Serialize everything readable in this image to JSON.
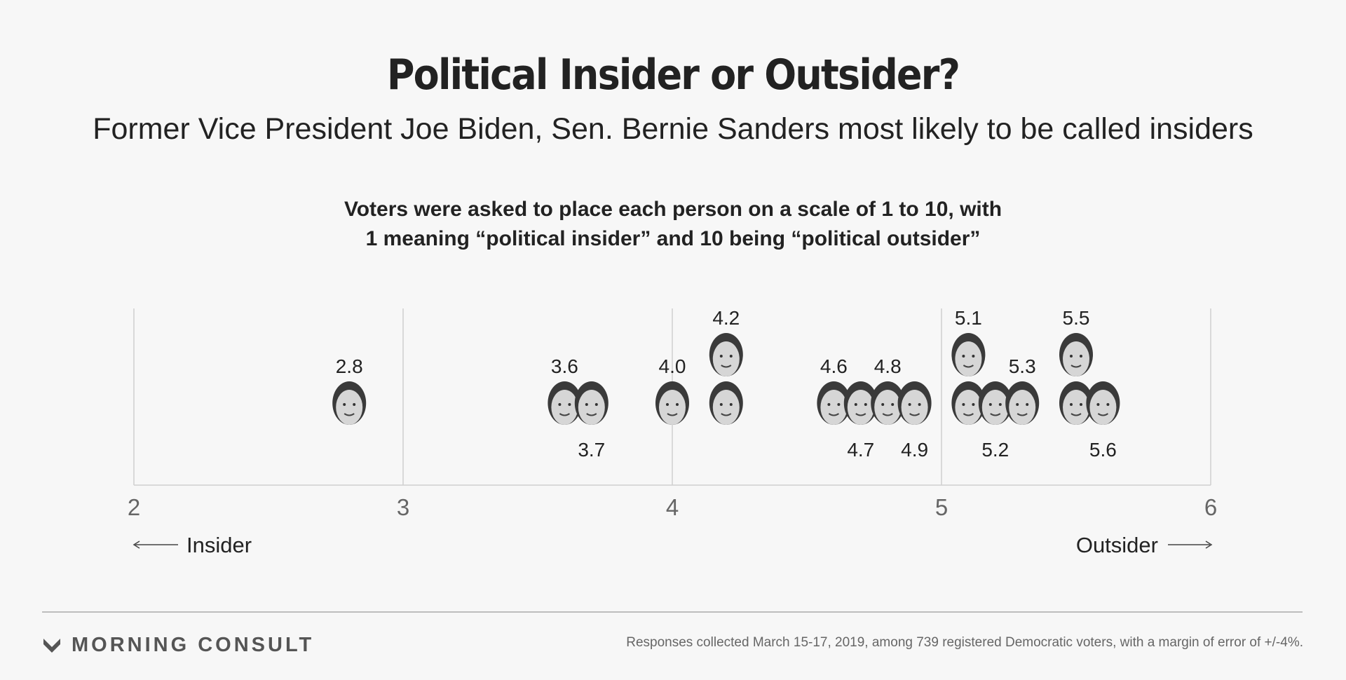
{
  "header": {
    "title": "Political Insider or Outsider?",
    "subtitle": "Former Vice President Joe Biden, Sen. Bernie Sanders most likely to be called insiders",
    "question_line1": "Voters were asked to place each person on a scale of 1 to 10, with",
    "question_line2": "1 meaning “political insider” and 10 being “political outsider”"
  },
  "chart_data": {
    "type": "scatter",
    "title": "Political Insider or Outsider?",
    "subtitle": "Former Vice President Joe Biden, Sen. Bernie Sanders most likely to be called insiders",
    "xlim": [
      2,
      6
    ],
    "x_ticks": [
      2,
      3,
      4,
      5,
      6
    ],
    "x_ticks_labels": [
      "2",
      "3",
      "4",
      "5",
      "6"
    ],
    "grid": true,
    "axis_left_label": "Insider",
    "axis_right_label": "Outsider",
    "points": [
      {
        "value": 2.8,
        "label": "2.8",
        "row": "mid",
        "label_pos": "above"
      },
      {
        "value": 3.6,
        "label": "3.6",
        "row": "mid",
        "label_pos": "above"
      },
      {
        "value": 3.7,
        "label": "3.7",
        "row": "mid",
        "label_pos": "below"
      },
      {
        "value": 4.0,
        "label": "4.0",
        "row": "mid",
        "label_pos": "above"
      },
      {
        "value": 4.2,
        "label": "4.2",
        "row": "top",
        "label_pos": "above"
      },
      {
        "value": 4.2,
        "label": "",
        "row": "mid",
        "label_pos": "none"
      },
      {
        "value": 4.6,
        "label": "4.6",
        "row": "mid",
        "label_pos": "above"
      },
      {
        "value": 4.7,
        "label": "4.7",
        "row": "mid",
        "label_pos": "below"
      },
      {
        "value": 4.8,
        "label": "4.8",
        "row": "mid",
        "label_pos": "above"
      },
      {
        "value": 4.9,
        "label": "4.9",
        "row": "mid",
        "label_pos": "below"
      },
      {
        "value": 5.1,
        "label": "5.1",
        "row": "top",
        "label_pos": "above"
      },
      {
        "value": 5.1,
        "label": "",
        "row": "mid",
        "label_pos": "none"
      },
      {
        "value": 5.2,
        "label": "5.2",
        "row": "mid",
        "label_pos": "below"
      },
      {
        "value": 5.3,
        "label": "5.3",
        "row": "mid",
        "label_pos": "above"
      },
      {
        "value": 5.5,
        "label": "5.5",
        "row": "top",
        "label_pos": "above"
      },
      {
        "value": 5.5,
        "label": "",
        "row": "mid",
        "label_pos": "none"
      },
      {
        "value": 5.6,
        "label": "5.6",
        "row": "mid",
        "label_pos": "below"
      }
    ]
  },
  "footer": {
    "brand": "MORNING CONSULT",
    "source": "Responses collected March 15-17, 2019, among 739 registered Democratic voters, with a margin of error of +/-4%."
  },
  "colors": {
    "background": "#f7f7f7",
    "gridline": "#cfcfcf",
    "face_dark": "#3a3a3a",
    "face_light": "#d6d6d6"
  }
}
